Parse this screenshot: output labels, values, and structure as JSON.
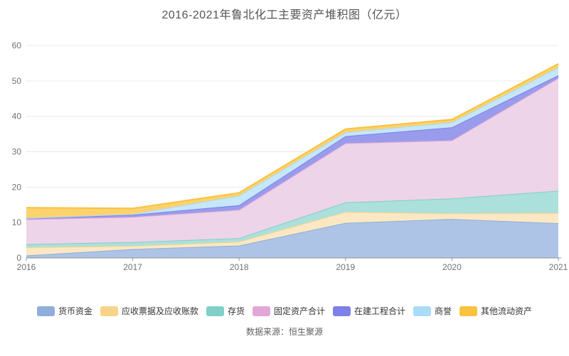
{
  "title": "2016-2021年鲁北化工主要资产堆积图（亿元）",
  "footer": "数据来源：恒生聚源",
  "colors": {
    "axis_line": "#909399",
    "tick_label": "#737373",
    "gridline": "#e8e9f1",
    "legend_text": "#333333",
    "title_text": "#555555"
  },
  "chart_data": {
    "type": "area",
    "stacked": true,
    "title": "2016-2021年鲁北化工主要资产堆积图（亿元）",
    "unit": "亿元",
    "x_labels": [
      "2016",
      "2017",
      "2018",
      "2019",
      "2020",
      "2021"
    ],
    "y_ticks": [
      "0",
      "10",
      "20",
      "30",
      "40",
      "50",
      "60"
    ],
    "ylim": [
      0,
      60
    ],
    "grid": true,
    "legend_position": "bottom",
    "series": [
      {
        "name": "货币资金",
        "color": "#8FAEDC",
        "fill": "#AEC4E6",
        "values": [
          0.7,
          2.5,
          3.5,
          9.9,
          11.0,
          9.8
        ]
      },
      {
        "name": "应收票据及应收账款",
        "color": "#F9D38A",
        "fill": "#FBE8C3",
        "values": [
          2.3,
          0.9,
          1.1,
          3.1,
          1.6,
          2.9
        ]
      },
      {
        "name": "存货",
        "color": "#80D0CA",
        "fill": "#ACE0DC",
        "values": [
          0.9,
          1.1,
          1.0,
          2.7,
          4.2,
          6.3
        ]
      },
      {
        "name": "固定资产合计",
        "color": "#E2A7D6",
        "fill": "#EED4E8",
        "values": [
          7.0,
          7.1,
          8.0,
          16.7,
          16.4,
          31.8
        ]
      },
      {
        "name": "在建工程合计",
        "color": "#7C80E8",
        "fill": "#999CEC",
        "values": [
          0.4,
          0.6,
          1.3,
          2.0,
          3.7,
          0.8
        ]
      },
      {
        "name": "商誉",
        "color": "#A9DCF6",
        "fill": "#C6E6F9",
        "values": [
          0.0,
          0.2,
          2.7,
          1.1,
          1.4,
          2.2
        ]
      },
      {
        "name": "其他流动资产",
        "color": "#FAC23E",
        "fill": "#FBD26E",
        "values": [
          2.9,
          1.6,
          0.8,
          0.9,
          0.8,
          1.0
        ]
      }
    ],
    "totals": [
      14.2,
      14.0,
      18.4,
      36.4,
      39.1,
      54.8
    ]
  }
}
